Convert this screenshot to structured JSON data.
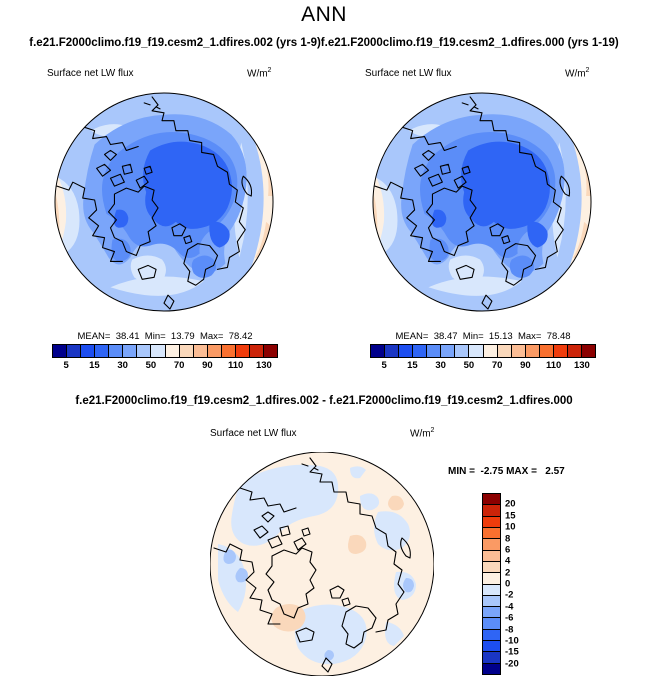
{
  "title": "ANN",
  "header": {
    "case_left": "f.e21.F2000climo.f19_f19.cesm2_1.dfires.002 (yrs 1-9)",
    "case_right": "f.e21.F2000climo.f19_f19.cesm2_1.dfires.000 (yrs 1-19)"
  },
  "variable": {
    "name": "Surface net LW flux",
    "units_base": "W/m",
    "units_exp": "2"
  },
  "panels": {
    "left": {
      "subtitle": "Surface net LW flux",
      "stats_line": "MEAN=  38.41  Min=  13.79  Max=  78.42"
    },
    "right": {
      "subtitle": "Surface net LW flux",
      "stats_line": "MEAN=  38.47  Min=  15.13  Max=  78.48"
    }
  },
  "diff": {
    "title": "f.e21.F2000climo.f19_f19.cesm2_1.dfires.002 - f.e21.F2000climo.f19_f19.cesm2_1.dfires.000",
    "subtitle": "Surface net LW flux",
    "stats_line": "MIN =  -2.75 MAX =   2.57"
  },
  "palette16": [
    "#00008B",
    "#1A36C4",
    "#1D4EF0",
    "#2F65F5",
    "#5B8DF8",
    "#7AA5FA",
    "#A9C7FB",
    "#D8E7FC",
    "#FDF0E2",
    "#FAD8BB",
    "#FBBD95",
    "#FA9A64",
    "#F9702F",
    "#EF3C0C",
    "#CC2409",
    "#8B0000"
  ],
  "flux_colorbar": {
    "tick_labels": [
      "5",
      "15",
      "30",
      "50",
      "70",
      "90",
      "110",
      "130"
    ]
  },
  "diff_colorbar": {
    "tick_labels": [
      "20",
      "15",
      "10",
      "8",
      "6",
      "4",
      "2",
      "0",
      "-2",
      "-4",
      "-6",
      "-8",
      "-10",
      "-15",
      "-20"
    ]
  },
  "chart_data": [
    {
      "type": "heatmap",
      "subtype": "north-polar-stereographic-contour-map",
      "season": "ANN",
      "title": "f.e21.F2000climo.f19_f19.cesm2_1.dfires.002 (yrs 1-9)",
      "variable": "Surface net LW flux",
      "units": "W/m2",
      "stats": {
        "mean": 38.41,
        "min": 13.79,
        "max": 78.42
      },
      "contour_levels": [
        5,
        10,
        15,
        20,
        30,
        40,
        50,
        60,
        70,
        80,
        90,
        100,
        110,
        120,
        130
      ],
      "colorbar_tick_labels": [
        5,
        15,
        30,
        50,
        70,
        90,
        110,
        130
      ],
      "colormap": "blue-to-red 16-step diverging",
      "legend_position": "bottom"
    },
    {
      "type": "heatmap",
      "subtype": "north-polar-stereographic-contour-map",
      "season": "ANN",
      "title": "f.e21.F2000climo.f19_f19.cesm2_1.dfires.000 (yrs 1-19)",
      "variable": "Surface net LW flux",
      "units": "W/m2",
      "stats": {
        "mean": 38.47,
        "min": 15.13,
        "max": 78.48
      },
      "contour_levels": [
        5,
        10,
        15,
        20,
        30,
        40,
        50,
        60,
        70,
        80,
        90,
        100,
        110,
        120,
        130
      ],
      "colorbar_tick_labels": [
        5,
        15,
        30,
        50,
        70,
        90,
        110,
        130
      ],
      "colormap": "blue-to-red 16-step diverging",
      "legend_position": "bottom"
    },
    {
      "type": "heatmap",
      "subtype": "north-polar-stereographic-contour-map-difference",
      "season": "ANN",
      "title": "f.e21.F2000climo.f19_f19.cesm2_1.dfires.002 - f.e21.F2000climo.f19_f19.cesm2_1.dfires.000",
      "variable": "Surface net LW flux",
      "units": "W/m2",
      "stats": {
        "min": -2.75,
        "max": 2.57
      },
      "contour_levels": [
        -20,
        -15,
        -10,
        -8,
        -6,
        -4,
        -2,
        0,
        2,
        4,
        6,
        8,
        10,
        15,
        20
      ],
      "colorbar_tick_labels": [
        20,
        15,
        10,
        8,
        6,
        4,
        2,
        0,
        -2,
        -4,
        -6,
        -8,
        -10,
        -15,
        -20
      ],
      "colormap": "blue-to-red 16-step diverging",
      "legend_position": "right"
    }
  ]
}
